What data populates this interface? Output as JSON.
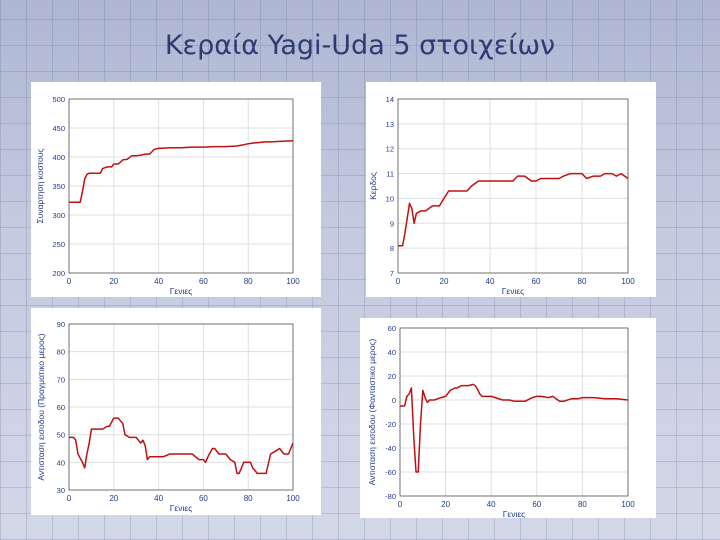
{
  "slide": {
    "title": "Κεραία Yagi-Uda 5 στοιχείων"
  },
  "colors": {
    "line": "#c01010",
    "tick_text": "#1f3a8c",
    "grid": "#dfdfdf",
    "frame": "#555555"
  },
  "chart_data": [
    {
      "type": "line",
      "title": "",
      "xlabel": "Γενιες",
      "ylabel": "Συναρτηση κοστους",
      "xlim": [
        0,
        100
      ],
      "ylim": [
        200,
        500
      ],
      "xticks": [
        "0",
        "20",
        "40",
        "60",
        "80",
        "100"
      ],
      "yticks": [
        "200",
        "250",
        "300",
        "350",
        "400",
        "450",
        "500"
      ],
      "grid": true,
      "series": [
        {
          "x": [
            0,
            5,
            6,
            7,
            8,
            9,
            14,
            15,
            17,
            19,
            20,
            22,
            24,
            26,
            28,
            30,
            32,
            34,
            36,
            38,
            40,
            42,
            45,
            50,
            55,
            60,
            65,
            70,
            75,
            78,
            80,
            82,
            85,
            88,
            90,
            95,
            100
          ],
          "values": [
            322,
            322,
            340,
            362,
            370,
            372,
            372,
            380,
            383,
            383,
            388,
            388,
            395,
            396,
            402,
            402,
            403,
            405,
            405,
            413,
            415,
            415,
            416,
            416,
            417,
            417,
            418,
            418,
            419,
            421,
            423,
            424,
            425,
            426,
            426,
            427,
            428
          ]
        }
      ]
    },
    {
      "type": "line",
      "title": "",
      "xlabel": "Γενιες",
      "ylabel": "Κερδος",
      "xlim": [
        0,
        100
      ],
      "ylim": [
        7,
        14
      ],
      "xticks": [
        "0",
        "20",
        "40",
        "60",
        "80",
        "100"
      ],
      "yticks": [
        "7",
        "8",
        "9",
        "10",
        "11",
        "12",
        "13",
        "14"
      ],
      "grid": true,
      "series": [
        {
          "x": [
            0,
            2,
            3,
            4,
            5,
            6,
            7,
            8,
            10,
            12,
            15,
            18,
            20,
            22,
            25,
            30,
            32,
            35,
            40,
            45,
            50,
            52,
            55,
            58,
            60,
            62,
            65,
            70,
            72,
            75,
            78,
            80,
            82,
            85,
            88,
            90,
            93,
            95,
            97,
            100
          ],
          "values": [
            8.1,
            8.1,
            8.6,
            9.2,
            9.8,
            9.6,
            9.0,
            9.4,
            9.5,
            9.5,
            9.7,
            9.7,
            10.0,
            10.3,
            10.3,
            10.3,
            10.5,
            10.7,
            10.7,
            10.7,
            10.7,
            10.9,
            10.9,
            10.7,
            10.7,
            10.8,
            10.8,
            10.8,
            10.9,
            11.0,
            11.0,
            11.0,
            10.8,
            10.9,
            10.9,
            11.0,
            11.0,
            10.9,
            11.0,
            10.8
          ]
        }
      ]
    },
    {
      "type": "line",
      "title": "",
      "xlabel": "Γενιες",
      "ylabel": "Αντισταση εισοδου (Πραγματικο μερος)",
      "xlim": [
        0,
        100
      ],
      "ylim": [
        30,
        90
      ],
      "xticks": [
        "0",
        "20",
        "40",
        "60",
        "80",
        "100"
      ],
      "yticks": [
        "30",
        "40",
        "50",
        "60",
        "70",
        "80",
        "90"
      ],
      "grid": true,
      "series": [
        {
          "x": [
            0,
            2,
            3,
            4,
            6,
            7,
            8,
            9,
            10,
            15,
            17,
            18,
            20,
            21,
            22,
            23,
            24,
            25,
            27,
            30,
            31,
            32,
            33,
            34,
            35,
            36,
            37,
            38,
            40,
            42,
            45,
            48,
            50,
            52,
            55,
            58,
            60,
            61,
            62,
            64,
            65,
            67,
            70,
            72,
            74,
            75,
            76,
            78,
            80,
            81,
            82,
            84,
            86,
            88,
            90,
            92,
            94,
            96,
            98,
            99,
            100
          ],
          "values": [
            49,
            49,
            48,
            43,
            40,
            38,
            43,
            47,
            52,
            52,
            53,
            53,
            56,
            56,
            56,
            55,
            54,
            50,
            49,
            49,
            48,
            47,
            48,
            46,
            41,
            42,
            42,
            42,
            42,
            42,
            43,
            43,
            43,
            43,
            43,
            41,
            41,
            40,
            42,
            45,
            45,
            43,
            43,
            41,
            40,
            36,
            36,
            40,
            40,
            40,
            38,
            36,
            36,
            36,
            43,
            44,
            45,
            43,
            43,
            45,
            47
          ]
        }
      ]
    },
    {
      "type": "line",
      "title": "",
      "xlabel": "Γενιες",
      "ylabel": "Αντισταση εισοδου (Φανταστικο μερος)",
      "xlim": [
        0,
        100
      ],
      "ylim": [
        -80,
        60
      ],
      "xticks": [
        "0",
        "20",
        "40",
        "60",
        "80",
        "100"
      ],
      "yticks": [
        "-80",
        "-60",
        "-40",
        "-20",
        "0",
        "20",
        "40",
        "60"
      ],
      "grid": true,
      "series": [
        {
          "x": [
            0,
            2,
            3,
            4,
            5,
            6,
            7,
            8,
            9,
            10,
            11,
            12,
            13,
            15,
            18,
            20,
            22,
            24,
            25,
            27,
            28,
            30,
            32,
            33,
            34,
            35,
            36,
            38,
            40,
            45,
            48,
            50,
            52,
            55,
            58,
            60,
            62,
            65,
            67,
            70,
            72,
            75,
            78,
            80,
            85,
            90,
            95,
            100
          ],
          "values": [
            -5,
            -5,
            3,
            5,
            10,
            -30,
            -60,
            -60,
            -20,
            8,
            2,
            -2,
            0,
            0,
            2,
            3,
            8,
            10,
            10,
            12,
            12,
            12,
            13,
            12,
            9,
            5,
            3,
            3,
            3,
            0,
            0,
            -1,
            -1,
            -1,
            2,
            3,
            3,
            2,
            3,
            -1,
            -1,
            1,
            1,
            2,
            2,
            1,
            1,
            0
          ]
        }
      ]
    }
  ]
}
